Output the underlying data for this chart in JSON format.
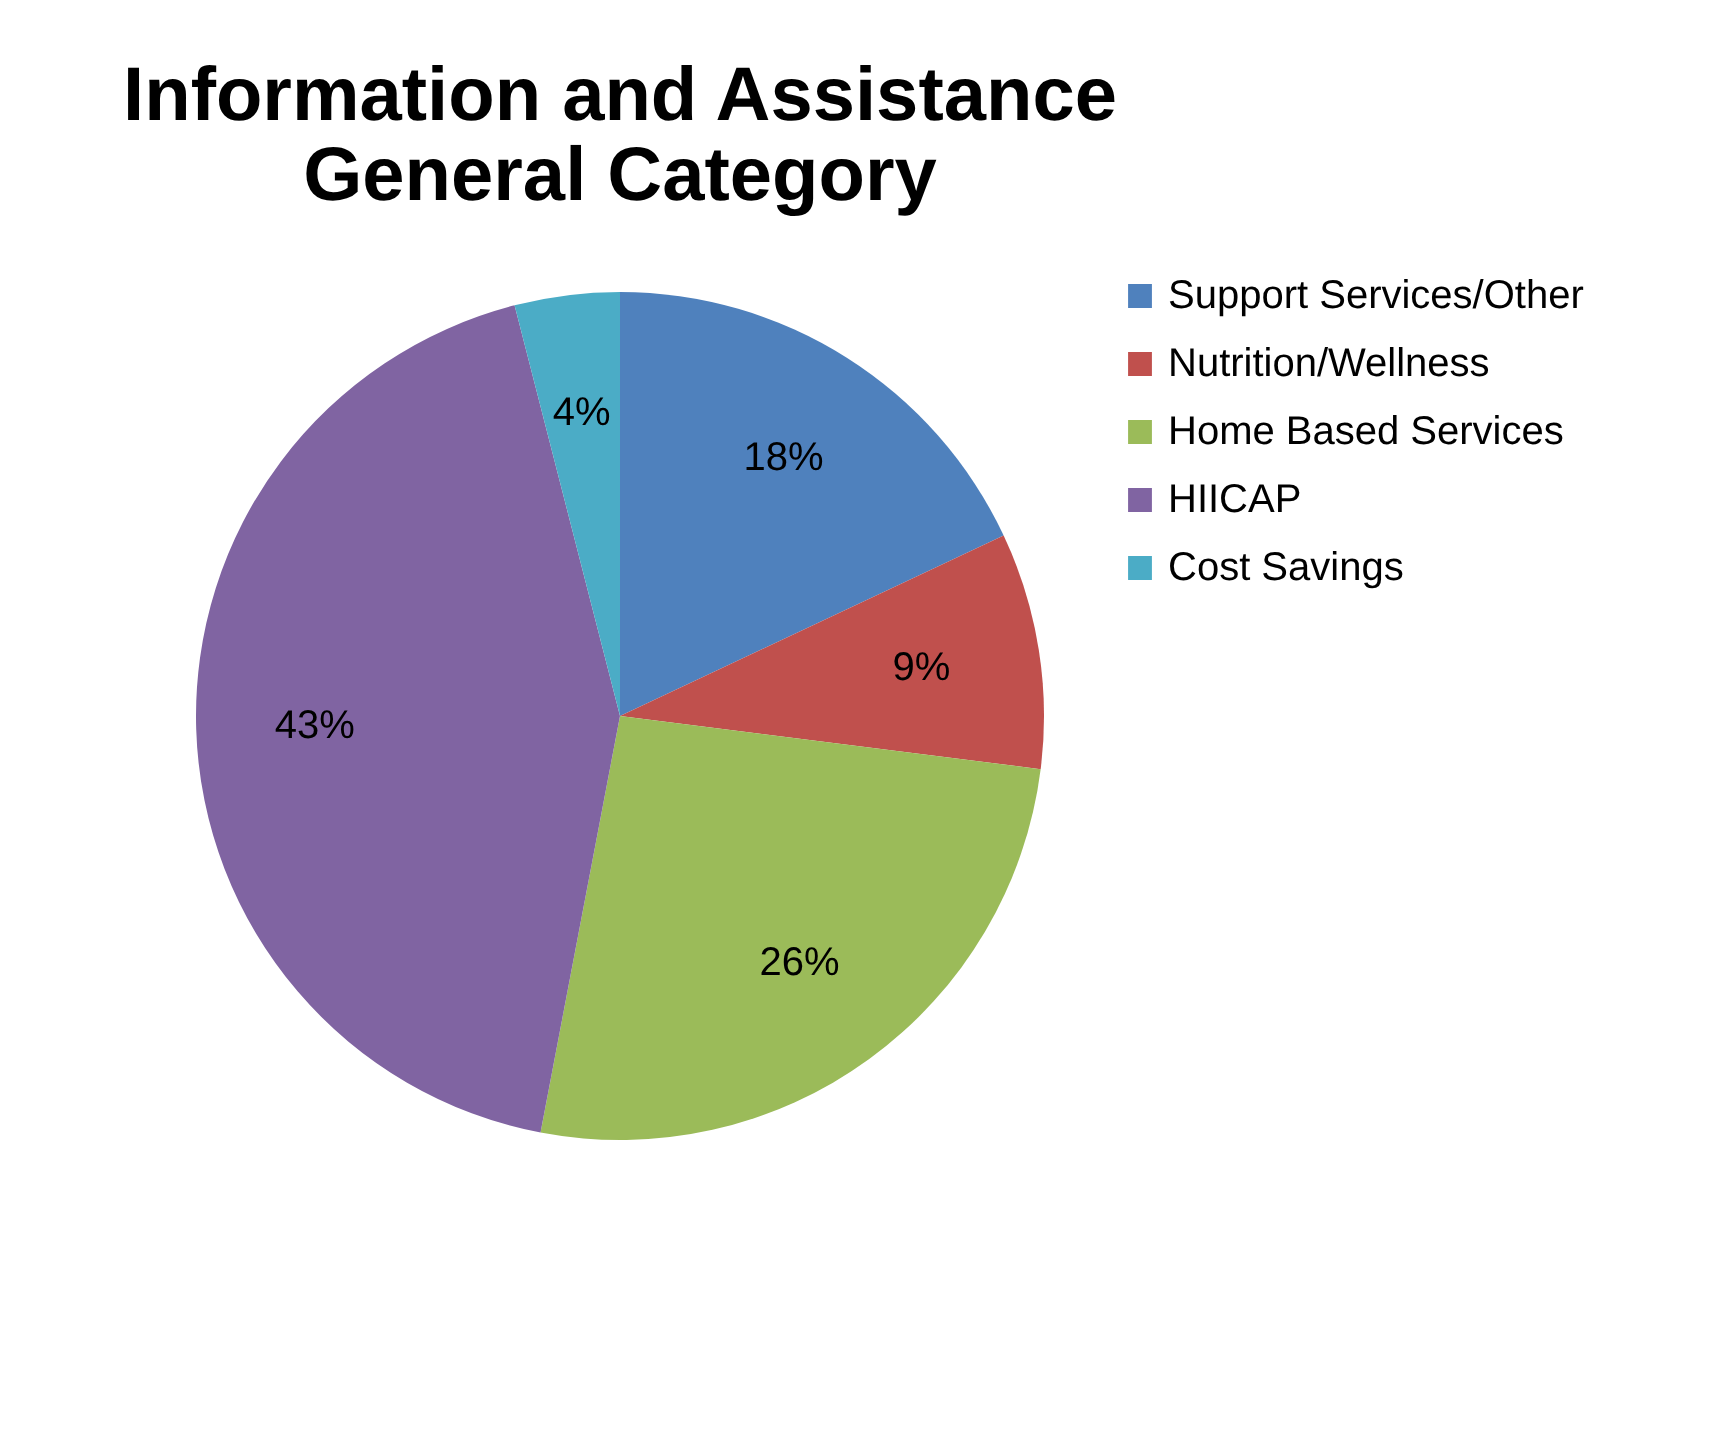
{
  "chart_data": {
    "type": "pie",
    "title": "Information and Assistance\nGeneral Category",
    "categories": [
      "Support Services/Other",
      "Nutrition/Wellness",
      "Home Based Services",
      "HIICAP",
      "Cost Savings"
    ],
    "values": [
      18,
      9,
      26,
      43,
      4
    ],
    "value_labels": [
      "18%",
      "9%",
      "26%",
      "43%",
      "4%"
    ],
    "colors": [
      "#4f81bd",
      "#c0504d",
      "#9bbb59",
      "#8064a2",
      "#4bacc6"
    ],
    "legend": "right"
  }
}
